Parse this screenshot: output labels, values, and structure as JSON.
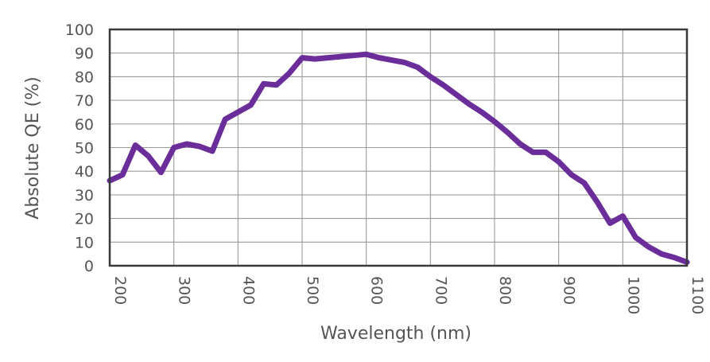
{
  "chart_data": {
    "type": "line",
    "xlabel": "Wavelength (nm)",
    "ylabel": "Absolute QE (%)",
    "xlim": [
      200,
      1100
    ],
    "ylim": [
      0,
      100
    ],
    "x_ticks": [
      200,
      300,
      400,
      500,
      600,
      700,
      800,
      900,
      1000,
      1100
    ],
    "y_ticks": [
      0,
      10,
      20,
      30,
      40,
      50,
      60,
      70,
      80,
      90,
      100
    ],
    "grid": true,
    "line_color": "#6b2d9a",
    "series": [
      {
        "x": [
          200,
          220,
          240,
          260,
          280,
          300,
          320,
          340,
          360,
          380,
          400,
          420,
          440,
          460,
          480,
          500,
          520,
          540,
          560,
          580,
          600,
          620,
          640,
          660,
          680,
          700,
          720,
          740,
          760,
          780,
          800,
          820,
          840,
          860,
          880,
          900,
          920,
          940,
          960,
          980,
          1000,
          1020,
          1040,
          1060,
          1080,
          1100
        ],
        "y": [
          36,
          38.5,
          51,
          46.5,
          39.5,
          50,
          51.5,
          50.5,
          48.5,
          62,
          65,
          68,
          77,
          76.5,
          81.5,
          88,
          87.5,
          88,
          88.5,
          89,
          89.5,
          88,
          87,
          86,
          84,
          80,
          76.5,
          72.5,
          68.5,
          65,
          61,
          56.5,
          51.5,
          48,
          48,
          44,
          38.5,
          35,
          27,
          18,
          21,
          12,
          8,
          5,
          3.5,
          1.5
        ]
      }
    ]
  }
}
